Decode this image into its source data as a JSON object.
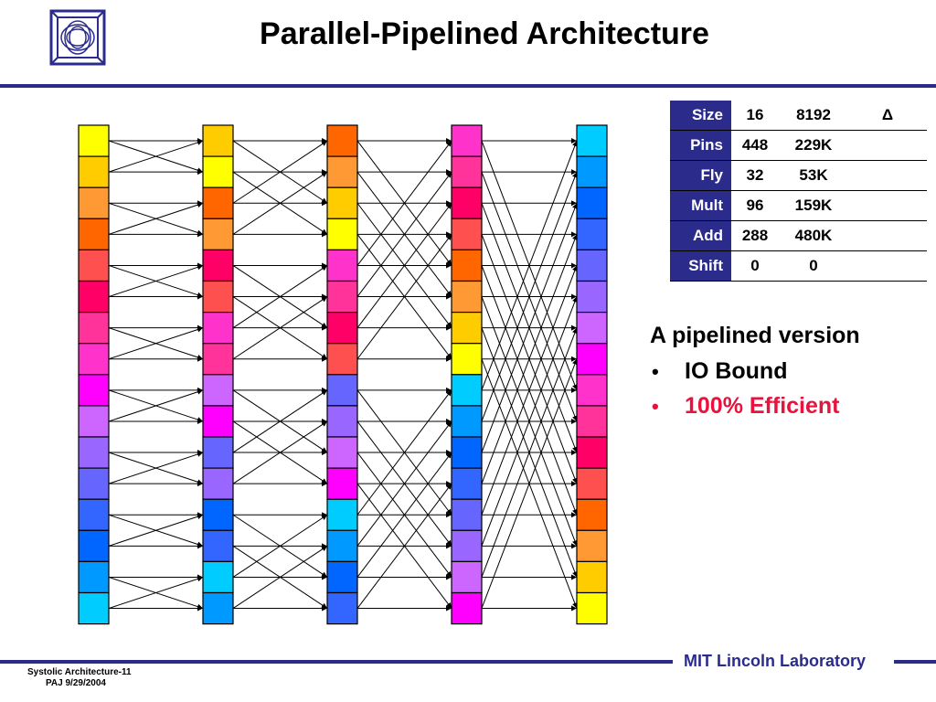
{
  "header": {
    "title": "Parallel-Pipelined Architecture"
  },
  "footer": {
    "slide_id": "Systolic Architecture-11",
    "author_date": "PAJ  9/29/2004",
    "lab_name": "MIT Lincoln Laboratory"
  },
  "table": {
    "rows": [
      {
        "label": "Size",
        "v1": "16",
        "v2": "8192",
        "v3": "Δ"
      },
      {
        "label": "Pins",
        "v1": "448",
        "v2": "229K",
        "v3": ""
      },
      {
        "label": "Fly",
        "v1": "32",
        "v2": "53K",
        "v3": ""
      },
      {
        "label": "Mult",
        "v1": "96",
        "v2": "159K",
        "v3": ""
      },
      {
        "label": "Add",
        "v1": "288",
        "v2": "480K",
        "v3": ""
      },
      {
        "label": "Shift",
        "v1": "0",
        "v2": "0",
        "v3": ""
      }
    ]
  },
  "notes": {
    "heading": "A pipelined version",
    "bullets": [
      {
        "text": "IO Bound",
        "color": "#000000"
      },
      {
        "text": "100% Efficient",
        "color": "#e8123c"
      }
    ]
  },
  "diagram": {
    "stage_colors": [
      [
        "#ffff00",
        "#ffcc00",
        "#ff9933",
        "#ff6600",
        "#ff5050",
        "#ff0066",
        "#ff3399",
        "#ff33cc",
        "#ff00ff",
        "#cc66ff",
        "#9966ff",
        "#6666ff",
        "#3366ff",
        "#0066ff",
        "#0099ff",
        "#00ccff"
      ],
      [
        "#ffcc00",
        "#ffff00",
        "#ff6600",
        "#ff9933",
        "#ff0066",
        "#ff5050",
        "#ff33cc",
        "#ff3399",
        "#cc66ff",
        "#ff00ff",
        "#6666ff",
        "#9966ff",
        "#0066ff",
        "#3366ff",
        "#00ccff",
        "#0099ff"
      ],
      [
        "#ff6600",
        "#ff9933",
        "#ffcc00",
        "#ffff00",
        "#ff33cc",
        "#ff3399",
        "#ff0066",
        "#ff5050",
        "#6666ff",
        "#9966ff",
        "#cc66ff",
        "#ff00ff",
        "#00ccff",
        "#0099ff",
        "#0066ff",
        "#3366ff"
      ],
      [
        "#ff33cc",
        "#ff3399",
        "#ff0066",
        "#ff5050",
        "#ff6600",
        "#ff9933",
        "#ffcc00",
        "#ffff00",
        "#00ccff",
        "#0099ff",
        "#0066ff",
        "#3366ff",
        "#6666ff",
        "#9966ff",
        "#cc66ff",
        "#ff00ff"
      ],
      [
        "#00ccff",
        "#0099ff",
        "#0066ff",
        "#3366ff",
        "#6666ff",
        "#9966ff",
        "#cc66ff",
        "#ff00ff",
        "#ff33cc",
        "#ff3399",
        "#ff0066",
        "#ff5050",
        "#ff6600",
        "#ff9933",
        "#ffcc00",
        "#ffff00"
      ]
    ],
    "butterfly_spans": [
      1,
      2,
      4,
      8
    ]
  }
}
